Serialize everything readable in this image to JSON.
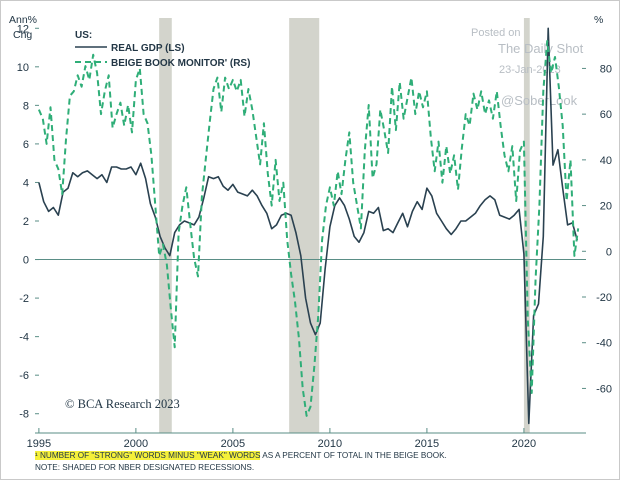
{
  "chart_data": {
    "type": "line",
    "left_axis": {
      "unit_label_1": "Ann%",
      "unit_label_2": "Chg",
      "range": [
        -9,
        13
      ],
      "ticks": [
        12,
        10,
        8,
        6,
        4,
        2,
        0,
        -2,
        -4,
        -6,
        -8
      ]
    },
    "right_axis": {
      "unit_label": "%",
      "range": [
        -79.5,
        106
      ],
      "ticks": [
        80,
        60,
        40,
        20,
        0,
        -20,
        -40,
        -60
      ]
    },
    "x_axis": {
      "range": [
        1994.8,
        2023.2
      ],
      "ticks": [
        "1995",
        "2000",
        "2005",
        "2010",
        "2015",
        "2020"
      ]
    },
    "legend_title": "US:",
    "grid": false,
    "recessions": [
      [
        2001.2,
        2001.85
      ],
      [
        2007.9,
        2009.45
      ],
      [
        2020.0,
        2020.3
      ]
    ],
    "series": [
      {
        "name": "REAL GDP (LS)",
        "axis": "left",
        "color": "#2a4150",
        "style": "solid",
        "points": [
          [
            1995.0,
            4.0
          ],
          [
            1995.25,
            3.0
          ],
          [
            1995.5,
            2.5
          ],
          [
            1995.75,
            2.7
          ],
          [
            1996.0,
            2.3
          ],
          [
            1996.25,
            3.5
          ],
          [
            1996.5,
            3.7
          ],
          [
            1996.75,
            4.5
          ],
          [
            1997.0,
            4.3
          ],
          [
            1997.25,
            4.5
          ],
          [
            1997.5,
            4.6
          ],
          [
            1997.75,
            4.4
          ],
          [
            1998.0,
            4.2
          ],
          [
            1998.25,
            4.4
          ],
          [
            1998.5,
            4.0
          ],
          [
            1998.75,
            4.8
          ],
          [
            1999.0,
            4.8
          ],
          [
            1999.25,
            4.7
          ],
          [
            1999.5,
            4.7
          ],
          [
            1999.75,
            4.8
          ],
          [
            2000.0,
            4.4
          ],
          [
            2000.25,
            5.0
          ],
          [
            2000.5,
            4.2
          ],
          [
            2000.75,
            2.9
          ],
          [
            2001.0,
            2.2
          ],
          [
            2001.25,
            1.2
          ],
          [
            2001.5,
            0.6
          ],
          [
            2001.75,
            0.2
          ],
          [
            2002.0,
            1.4
          ],
          [
            2002.25,
            1.8
          ],
          [
            2002.5,
            2.0
          ],
          [
            2002.75,
            1.9
          ],
          [
            2003.0,
            1.8
          ],
          [
            2003.25,
            2.2
          ],
          [
            2003.5,
            3.2
          ],
          [
            2003.75,
            4.3
          ],
          [
            2004.0,
            4.2
          ],
          [
            2004.25,
            4.3
          ],
          [
            2004.5,
            3.8
          ],
          [
            2004.75,
            3.6
          ],
          [
            2005.0,
            3.9
          ],
          [
            2005.25,
            3.5
          ],
          [
            2005.5,
            3.4
          ],
          [
            2005.75,
            3.3
          ],
          [
            2006.0,
            3.6
          ],
          [
            2006.25,
            3.3
          ],
          [
            2006.5,
            2.8
          ],
          [
            2006.75,
            2.4
          ],
          [
            2007.0,
            1.6
          ],
          [
            2007.25,
            1.8
          ],
          [
            2007.5,
            2.3
          ],
          [
            2007.75,
            2.4
          ],
          [
            2008.0,
            2.3
          ],
          [
            2008.25,
            1.4
          ],
          [
            2008.5,
            0.2
          ],
          [
            2008.75,
            -2.0
          ],
          [
            2009.0,
            -3.3
          ],
          [
            2009.25,
            -3.9
          ],
          [
            2009.5,
            -3.3
          ],
          [
            2009.75,
            -0.5
          ],
          [
            2010.0,
            1.7
          ],
          [
            2010.25,
            2.8
          ],
          [
            2010.5,
            3.2
          ],
          [
            2010.75,
            2.8
          ],
          [
            2011.0,
            2.1
          ],
          [
            2011.25,
            1.2
          ],
          [
            2011.5,
            0.9
          ],
          [
            2011.75,
            1.4
          ],
          [
            2012.0,
            2.5
          ],
          [
            2012.25,
            2.4
          ],
          [
            2012.5,
            2.7
          ],
          [
            2012.75,
            1.5
          ],
          [
            2013.0,
            1.6
          ],
          [
            2013.25,
            1.4
          ],
          [
            2013.5,
            1.9
          ],
          [
            2013.75,
            2.4
          ],
          [
            2014.0,
            1.7
          ],
          [
            2014.25,
            2.5
          ],
          [
            2014.5,
            3.0
          ],
          [
            2014.75,
            2.6
          ],
          [
            2015.0,
            3.7
          ],
          [
            2015.25,
            3.3
          ],
          [
            2015.5,
            2.4
          ],
          [
            2015.75,
            2.0
          ],
          [
            2016.0,
            1.6
          ],
          [
            2016.25,
            1.3
          ],
          [
            2016.5,
            1.6
          ],
          [
            2016.75,
            2.0
          ],
          [
            2017.0,
            2.0
          ],
          [
            2017.25,
            2.2
          ],
          [
            2017.5,
            2.4
          ],
          [
            2017.75,
            2.8
          ],
          [
            2018.0,
            3.1
          ],
          [
            2018.25,
            3.3
          ],
          [
            2018.5,
            3.1
          ],
          [
            2018.75,
            2.3
          ],
          [
            2019.0,
            2.2
          ],
          [
            2019.25,
            2.1
          ],
          [
            2019.5,
            2.3
          ],
          [
            2019.75,
            2.6
          ],
          [
            2020.0,
            0.3
          ],
          [
            2020.25,
            -8.5
          ],
          [
            2020.5,
            -2.9
          ],
          [
            2020.75,
            -2.3
          ],
          [
            2021.0,
            1.2
          ],
          [
            2021.25,
            12.0
          ],
          [
            2021.5,
            4.9
          ],
          [
            2021.75,
            5.7
          ],
          [
            2022.0,
            3.7
          ],
          [
            2022.25,
            1.8
          ],
          [
            2022.5,
            1.9
          ],
          [
            2022.75,
            1.0
          ]
        ]
      },
      {
        "name": "BEIGE BOOK MONITOR' (RS)",
        "axis": "right",
        "color": "#2fae78",
        "style": "dashed",
        "points": [
          [
            1995.0,
            62
          ],
          [
            1995.2,
            58
          ],
          [
            1995.4,
            47
          ],
          [
            1995.6,
            63
          ],
          [
            1995.8,
            40
          ],
          [
            1996.0,
            36
          ],
          [
            1996.2,
            25
          ],
          [
            1996.4,
            49
          ],
          [
            1996.6,
            68
          ],
          [
            1996.8,
            70
          ],
          [
            1997.0,
            77
          ],
          [
            1997.2,
            72
          ],
          [
            1997.4,
            81
          ],
          [
            1997.6,
            75
          ],
          [
            1997.8,
            86
          ],
          [
            1998.0,
            78
          ],
          [
            1998.2,
            60
          ],
          [
            1998.4,
            70
          ],
          [
            1998.6,
            77
          ],
          [
            1998.8,
            54
          ],
          [
            1999.0,
            60
          ],
          [
            1999.2,
            65
          ],
          [
            1999.4,
            55
          ],
          [
            1999.6,
            64
          ],
          [
            1999.8,
            52
          ],
          [
            2000.0,
            75
          ],
          [
            2000.2,
            80
          ],
          [
            2000.4,
            60
          ],
          [
            2000.6,
            56
          ],
          [
            2000.8,
            42
          ],
          [
            2001.0,
            20
          ],
          [
            2001.2,
            -2
          ],
          [
            2001.4,
            3
          ],
          [
            2001.6,
            -6
          ],
          [
            2001.8,
            -25
          ],
          [
            2002.0,
            -42
          ],
          [
            2002.2,
            8
          ],
          [
            2002.4,
            20
          ],
          [
            2002.6,
            28
          ],
          [
            2002.8,
            12
          ],
          [
            2003.0,
            -3
          ],
          [
            2003.2,
            -11
          ],
          [
            2003.4,
            24
          ],
          [
            2003.6,
            40
          ],
          [
            2003.8,
            56
          ],
          [
            2004.0,
            71
          ],
          [
            2004.2,
            76
          ],
          [
            2004.4,
            61
          ],
          [
            2004.6,
            76
          ],
          [
            2004.8,
            71
          ],
          [
            2005.0,
            75
          ],
          [
            2005.2,
            70
          ],
          [
            2005.4,
            75
          ],
          [
            2005.6,
            59
          ],
          [
            2005.8,
            71
          ],
          [
            2006.0,
            62
          ],
          [
            2006.2,
            50
          ],
          [
            2006.4,
            38
          ],
          [
            2006.6,
            56
          ],
          [
            2006.8,
            34
          ],
          [
            2007.0,
            20
          ],
          [
            2007.2,
            40
          ],
          [
            2007.4,
            22
          ],
          [
            2007.6,
            30
          ],
          [
            2007.8,
            5
          ],
          [
            2008.0,
            -10
          ],
          [
            2008.2,
            -22
          ],
          [
            2008.4,
            -38
          ],
          [
            2008.6,
            -60
          ],
          [
            2008.8,
            -72
          ],
          [
            2009.0,
            -68
          ],
          [
            2009.2,
            -50
          ],
          [
            2009.4,
            -28
          ],
          [
            2009.6,
            5
          ],
          [
            2009.8,
            20
          ],
          [
            2010.0,
            28
          ],
          [
            2010.2,
            20
          ],
          [
            2010.4,
            35
          ],
          [
            2010.6,
            25
          ],
          [
            2010.8,
            40
          ],
          [
            2011.0,
            52
          ],
          [
            2011.2,
            30
          ],
          [
            2011.4,
            20
          ],
          [
            2011.6,
            10
          ],
          [
            2011.8,
            44
          ],
          [
            2012.0,
            64
          ],
          [
            2012.2,
            32
          ],
          [
            2012.4,
            38
          ],
          [
            2012.6,
            62
          ],
          [
            2012.8,
            53
          ],
          [
            2013.0,
            43
          ],
          [
            2013.2,
            72
          ],
          [
            2013.4,
            53
          ],
          [
            2013.6,
            74
          ],
          [
            2013.8,
            58
          ],
          [
            2014.0,
            67
          ],
          [
            2014.2,
            76
          ],
          [
            2014.4,
            60
          ],
          [
            2014.6,
            70
          ],
          [
            2014.8,
            63
          ],
          [
            2015.0,
            70
          ],
          [
            2015.2,
            50
          ],
          [
            2015.4,
            35
          ],
          [
            2015.6,
            48
          ],
          [
            2015.8,
            30
          ],
          [
            2016.0,
            46
          ],
          [
            2016.2,
            34
          ],
          [
            2016.4,
            42
          ],
          [
            2016.6,
            27
          ],
          [
            2016.8,
            45
          ],
          [
            2017.0,
            60
          ],
          [
            2017.2,
            55
          ],
          [
            2017.4,
            69
          ],
          [
            2017.6,
            62
          ],
          [
            2017.8,
            70
          ],
          [
            2018.0,
            60
          ],
          [
            2018.2,
            66
          ],
          [
            2018.4,
            58
          ],
          [
            2018.6,
            70
          ],
          [
            2018.8,
            55
          ],
          [
            2019.0,
            42
          ],
          [
            2019.2,
            35
          ],
          [
            2019.4,
            46
          ],
          [
            2019.6,
            22
          ],
          [
            2019.8,
            44
          ],
          [
            2020.0,
            48
          ],
          [
            2020.2,
            -30
          ],
          [
            2020.4,
            -62
          ],
          [
            2020.6,
            -12
          ],
          [
            2020.8,
            20
          ],
          [
            2021.0,
            70
          ],
          [
            2021.2,
            92
          ],
          [
            2021.4,
            78
          ],
          [
            2021.6,
            85
          ],
          [
            2021.8,
            72
          ],
          [
            2022.0,
            55
          ],
          [
            2022.2,
            22
          ],
          [
            2022.4,
            40
          ],
          [
            2022.6,
            -2
          ],
          [
            2022.8,
            10
          ]
        ]
      }
    ]
  },
  "watermark": {
    "line1": "Posted on",
    "line2": "The Daily Shot",
    "line3": "23-Jan-2023",
    "line4": "@SoberLook"
  },
  "source": "© BCA Research 2023",
  "footnote": {
    "highlight": "¹ NUMBER OF \"STRONG\" WORDS MINUS \"WEAK\" WORDS",
    "rest": " AS A PERCENT OF TOTAL IN THE BEIGE BOOK.",
    "note": "NOTE: SHADED FOR NBER DESIGNATED RECESSIONS."
  },
  "colors": {
    "recession": "#d3d4cc",
    "gdp": "#2a4150",
    "beige": "#2fae78",
    "axis": "#5a8e86"
  }
}
